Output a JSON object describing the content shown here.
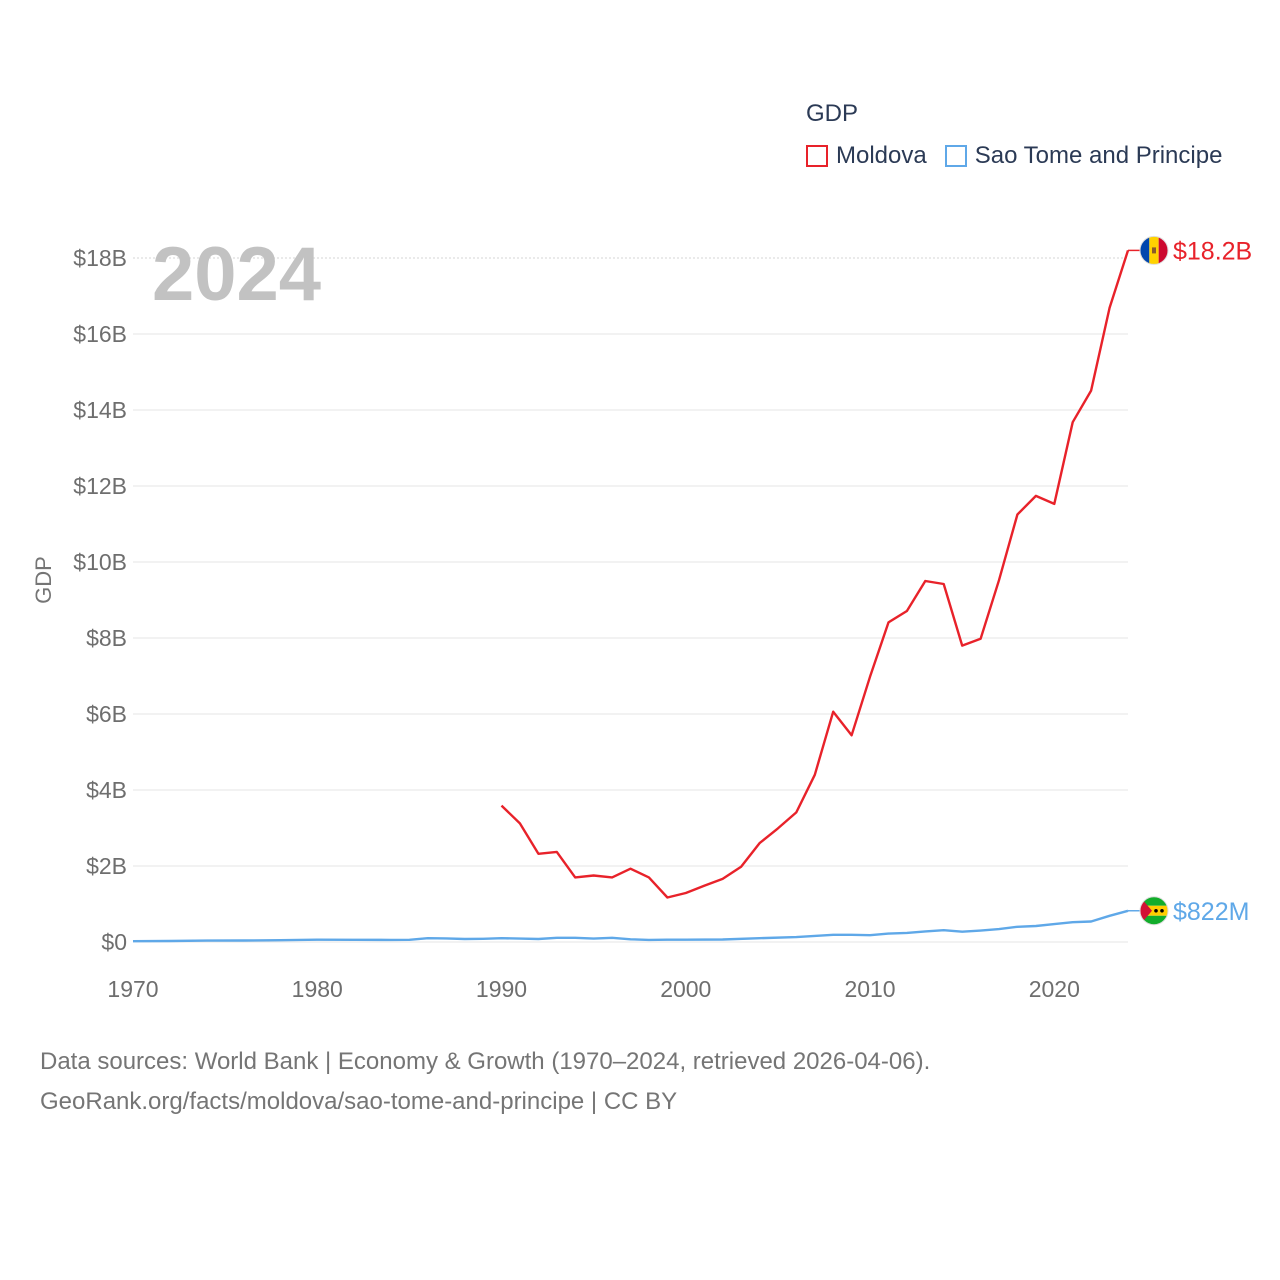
{
  "chart_data": {
    "type": "line",
    "title": "GDP",
    "year_label": "2024",
    "ylabel": "GDP",
    "xlabel": "",
    "xlim": [
      1970,
      2024
    ],
    "ylim": [
      0,
      18000000000
    ],
    "x_ticks": [
      "1970",
      "1980",
      "1990",
      "2000",
      "2010",
      "2020"
    ],
    "y_ticks": [
      "$0",
      "$2B",
      "$4B",
      "$6B",
      "$8B",
      "$10B",
      "$12B",
      "$14B",
      "$16B",
      "$18B"
    ],
    "grid": true,
    "legend_position": "top-right",
    "series": [
      {
        "name": "Moldova",
        "color": "#e8222a",
        "end_label": "$18.2B",
        "flag_icon": "moldova-flag-icon",
        "x": [
          1990,
          1991,
          1992,
          1993,
          1994,
          1995,
          1996,
          1997,
          1998,
          1999,
          2000,
          2001,
          2002,
          2003,
          2004,
          2005,
          2006,
          2007,
          2008,
          2009,
          2010,
          2011,
          2012,
          2013,
          2014,
          2015,
          2016,
          2017,
          2018,
          2019,
          2020,
          2021,
          2022,
          2023,
          2024
        ],
        "values": [
          3590000000,
          3120000000,
          2320000000,
          2370000000,
          1700000000,
          1750000000,
          1700000000,
          1930000000,
          1700000000,
          1170000000,
          1290000000,
          1480000000,
          1660000000,
          1980000000,
          2600000000,
          2990000000,
          3410000000,
          4400000000,
          6060000000,
          5440000000,
          6980000000,
          8410000000,
          8710000000,
          9500000000,
          9420000000,
          7800000000,
          7980000000,
          9520000000,
          11250000000,
          11740000000,
          11530000000,
          13680000000,
          14510000000,
          16690000000,
          18200000000
        ]
      },
      {
        "name": "Sao Tome and Principe",
        "color": "#5fa8e8",
        "end_label": "$822M",
        "flag_icon": "sao-tome-flag-icon",
        "x": [
          1970,
          1972,
          1974,
          1976,
          1978,
          1980,
          1982,
          1984,
          1985,
          1986,
          1987,
          1988,
          1989,
          1990,
          1991,
          1992,
          1993,
          1994,
          1995,
          1996,
          1997,
          1998,
          1999,
          2000,
          2002,
          2004,
          2006,
          2008,
          2009,
          2010,
          2011,
          2012,
          2013,
          2014,
          2015,
          2016,
          2017,
          2018,
          2019,
          2020,
          2021,
          2022,
          2023,
          2024
        ],
        "values": [
          20000000,
          25000000,
          38000000,
          40000000,
          48000000,
          60000000,
          58000000,
          55000000,
          57000000,
          100000000,
          95000000,
          80000000,
          84000000,
          100000000,
          90000000,
          80000000,
          110000000,
          110000000,
          90000000,
          110000000,
          70000000,
          55000000,
          60000000,
          60000000,
          65000000,
          100000000,
          130000000,
          190000000,
          190000000,
          180000000,
          220000000,
          240000000,
          280000000,
          310000000,
          270000000,
          300000000,
          340000000,
          400000000,
          420000000,
          470000000,
          520000000,
          540000000,
          690000000,
          822000000
        ]
      }
    ]
  },
  "footer": {
    "line1": "Data sources: World Bank | Economy & Growth (1970–2024, retrieved 2026-04-06).",
    "line2": "GeoRank.org/facts/moldova/sao-tome-and-principe | CC BY"
  }
}
